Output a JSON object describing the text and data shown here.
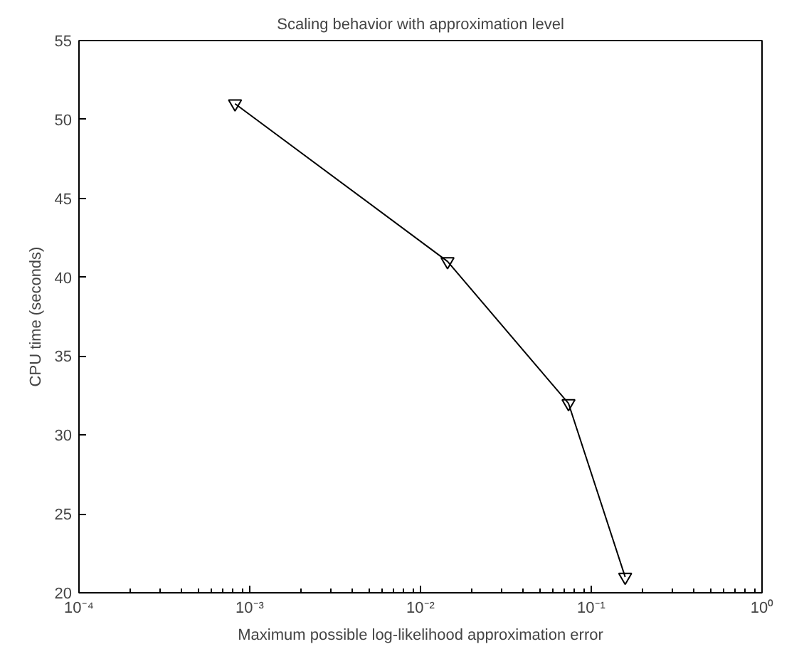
{
  "chart_data": {
    "type": "line",
    "title": "Scaling behavior with approximation level",
    "xlabel": "Maximum possible log-likelihood approximation error",
    "ylabel": "CPU time (seconds)",
    "x": [
      0.00082,
      0.0144,
      0.0736,
      0.158
    ],
    "series": [
      {
        "color": "#000000",
        "values": [
          51,
          41,
          32,
          21
        ]
      }
    ],
    "log": "x",
    "xlim": [
      0.0001,
      1
    ],
    "xticks": [
      {
        "value": 0.0001,
        "label": "10⁻⁴"
      },
      {
        "value": 0.001,
        "label": "10⁻³"
      },
      {
        "value": 0.01,
        "label": "10⁻²"
      },
      {
        "value": 0.1,
        "label": "10⁻¹"
      },
      {
        "value": 1,
        "label": "10⁰"
      }
    ],
    "ylim": [
      20,
      55
    ],
    "yticks": [
      20,
      25,
      30,
      35,
      40,
      45,
      50,
      55
    ],
    "marker": "triangle",
    "line_style": "solid"
  }
}
